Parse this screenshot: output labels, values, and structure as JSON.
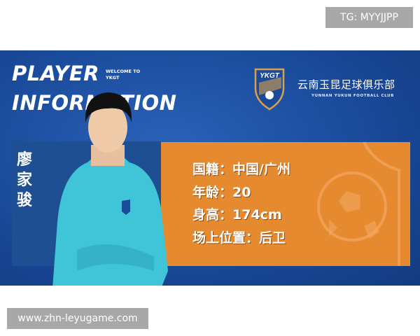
{
  "watermark_top": "TG: MYYJJPP",
  "watermark_bottom": "www.zhn-leyugame.com",
  "banner": {
    "title_line1": "PLAYER",
    "title_line2": "INFORMATION",
    "welcome": "WELCOME TO YKGT",
    "club_crest_text": "YKGT",
    "club_name_cn": "云南玉昆足球俱乐部",
    "club_name_en": "YUNNAN YUKUN FOOTBALL CLUB",
    "player_name": "廖家骏",
    "info": [
      "国籍：中国/广州",
      "年龄：20",
      "身高：174cm",
      "场上位置：后卫"
    ]
  },
  "colors": {
    "banner_blue": "#1a4a9a",
    "panel_orange": "#e68a30",
    "jacket": "#3fc4d8"
  }
}
